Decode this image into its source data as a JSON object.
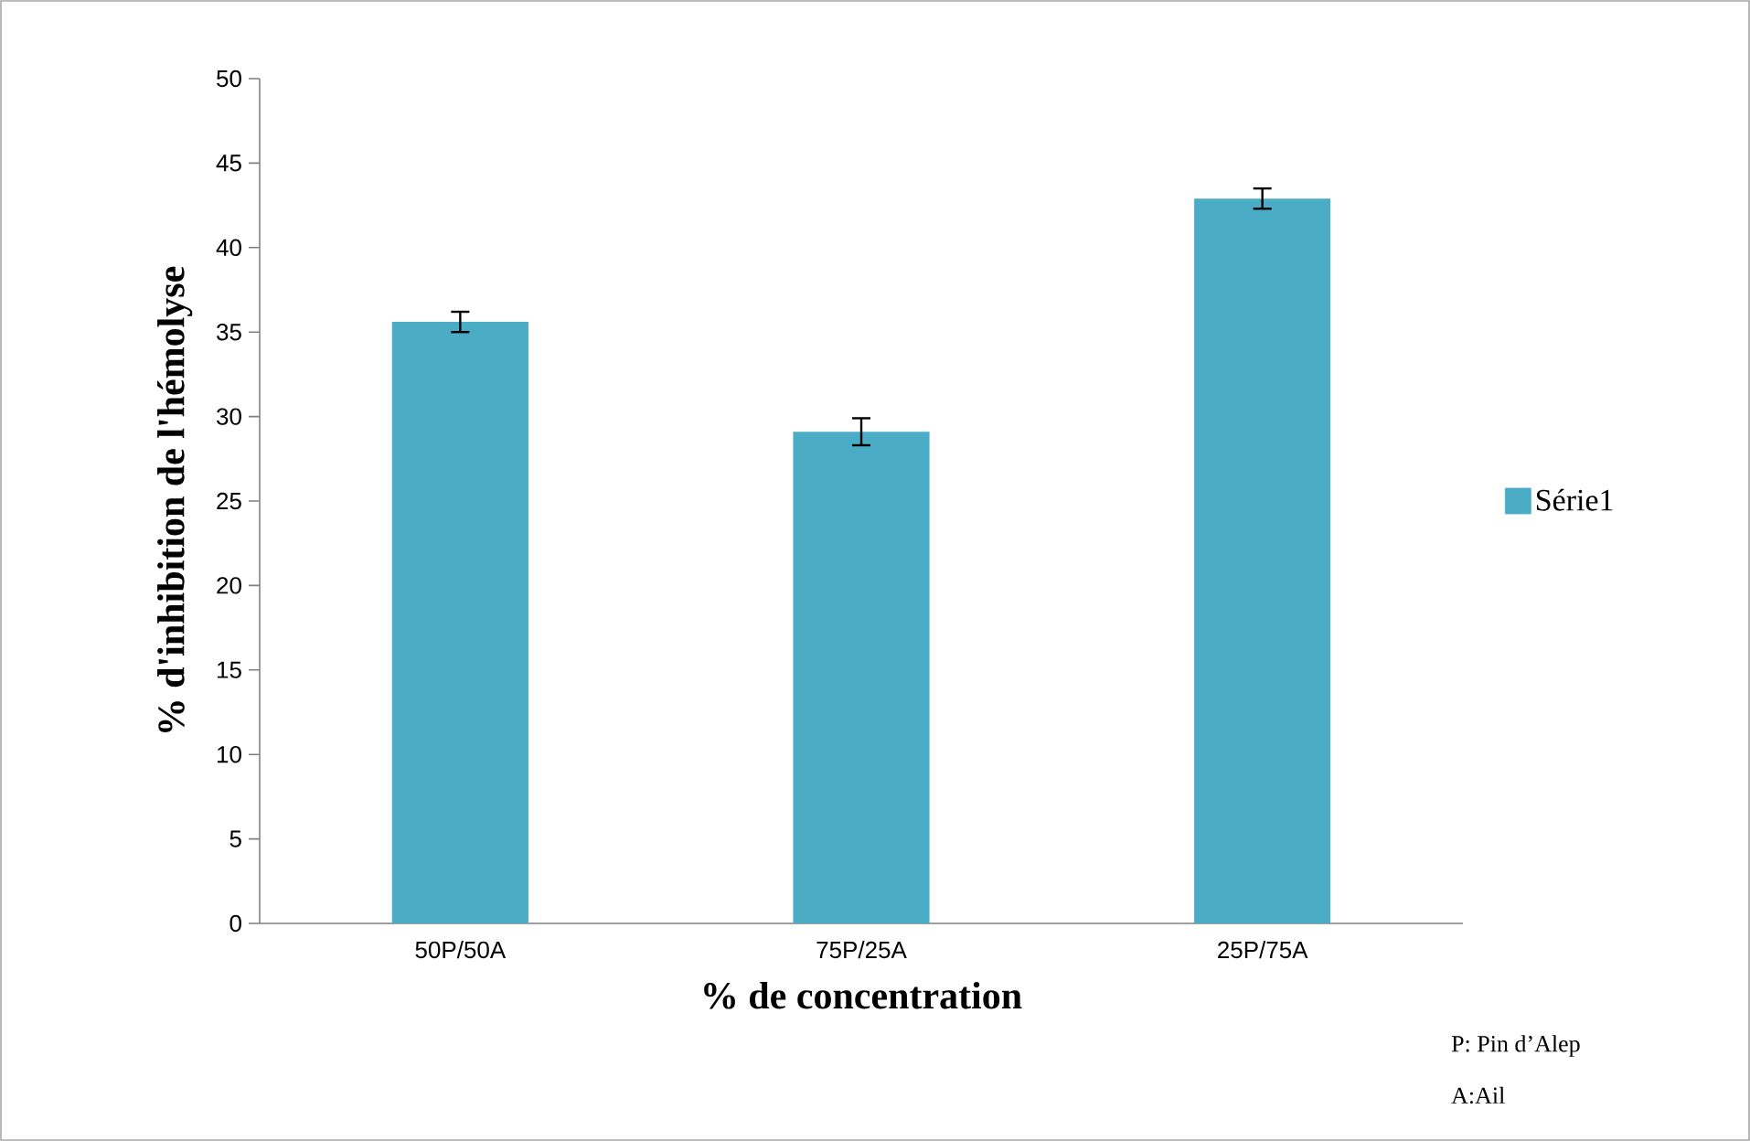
{
  "chart_data": {
    "type": "bar",
    "xlabel": "% de concentration",
    "ylabel": "%  d'inhibition de l'hémolyse",
    "categories": [
      "50P/50A",
      "75P/25A",
      "25P/75A"
    ],
    "series": [
      {
        "name": "Série1",
        "color": "#4bacc6",
        "values": [
          35.6,
          29.1,
          42.9
        ],
        "errors": [
          0.6,
          0.8,
          0.6
        ]
      }
    ],
    "ylim": [
      0,
      50
    ],
    "yticks": [
      0,
      5,
      10,
      15,
      20,
      25,
      30,
      35,
      40,
      45,
      50
    ],
    "grid": false,
    "legend": "right",
    "annotations": [
      "P: Pin d’Alep",
      "A:Ail"
    ]
  }
}
